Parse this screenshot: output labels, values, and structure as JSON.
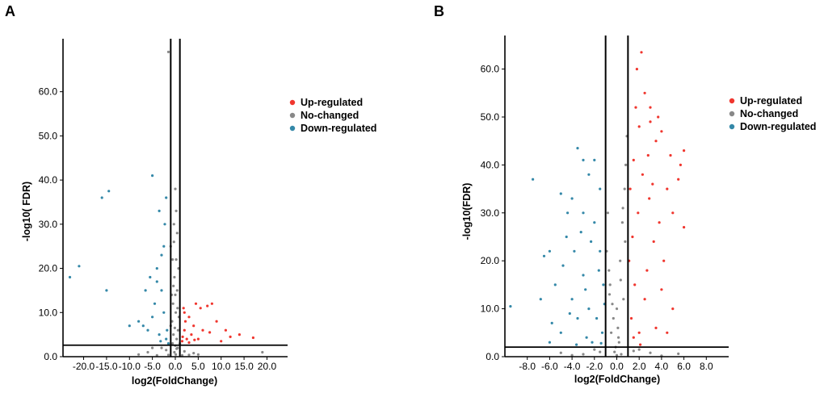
{
  "figure": {
    "panel_a_label": "A",
    "panel_b_label": "B"
  },
  "colors": {
    "up": "#f0362e",
    "none": "#888888",
    "down": "#3488a8",
    "lines": "#000000"
  },
  "chart_data": [
    {
      "type": "scatter",
      "panel": "A",
      "xlabel": "log2(FoldChange)",
      "ylabel": "-log10( FDR)",
      "xlim": [
        -24.5,
        24.5
      ],
      "ylim": [
        0,
        72
      ],
      "x_ticks": [
        -20,
        -15,
        -10,
        -5,
        0,
        5,
        10,
        15,
        20
      ],
      "x_tick_labels": [
        "-20.0",
        "-15.0",
        "-10.0",
        "-5.0",
        "0.0",
        "5.0",
        "10.0",
        "15.0",
        "20.0"
      ],
      "y_ticks": [
        0,
        10,
        20,
        30,
        40,
        50,
        60
      ],
      "y_tick_labels": [
        "0.0",
        "10.0",
        "20.0",
        "30.0",
        "40.0",
        "50.0",
        "60.0"
      ],
      "vlines": [
        -1,
        1
      ],
      "hline": 2.6,
      "legend": [
        "Up-regulated",
        "No-changed",
        "Down-regulated"
      ],
      "legend_position": "right",
      "series": [
        {
          "name": "Up-regulated",
          "points": [
            [
              4.5,
              12
            ],
            [
              7,
              11.5
            ],
            [
              8,
              12
            ],
            [
              5.5,
              11
            ],
            [
              3,
              9
            ],
            [
              2,
              10
            ],
            [
              9,
              8
            ],
            [
              11,
              6
            ],
            [
              14,
              5
            ],
            [
              17,
              4.3
            ],
            [
              6,
              6
            ],
            [
              4,
              7
            ],
            [
              3.5,
              5
            ],
            [
              2.5,
              4
            ],
            [
              1.5,
              3.5
            ],
            [
              2,
              6
            ],
            [
              3,
              3.2
            ],
            [
              1.6,
              4.5
            ],
            [
              5,
              4
            ],
            [
              7.5,
              5.5
            ],
            [
              12,
              4.5
            ],
            [
              10,
              3.5
            ],
            [
              2.2,
              8
            ],
            [
              1.8,
              11
            ],
            [
              4.2,
              3.8
            ]
          ]
        },
        {
          "name": "No-changed",
          "points": [
            [
              -1.5,
              69
            ],
            [
              0,
              38
            ],
            [
              -0.3,
              30
            ],
            [
              0.2,
              22
            ],
            [
              -0.2,
              18
            ],
            [
              0.4,
              15
            ],
            [
              -0.5,
              12
            ],
            [
              0.1,
              10
            ],
            [
              -0.7,
              8
            ],
            [
              0.6,
              6
            ],
            [
              -0.4,
              5
            ],
            [
              0.3,
              4
            ],
            [
              -0.6,
              3
            ],
            [
              0.5,
              2
            ],
            [
              -0.2,
              1
            ],
            [
              0.1,
              0.5
            ],
            [
              -8,
              0.5
            ],
            [
              -6,
              1
            ],
            [
              -4,
              0.3
            ],
            [
              5,
              0.5
            ],
            [
              3,
              0.4
            ],
            [
              19,
              1
            ],
            [
              -1,
              25
            ],
            [
              0.7,
              20
            ],
            [
              -0.3,
              26
            ],
            [
              0.2,
              33
            ],
            [
              -0.8,
              14
            ],
            [
              0.8,
              9
            ],
            [
              -1,
              7
            ],
            [
              1,
              3
            ],
            [
              -2,
              1.5
            ],
            [
              2,
              1.2
            ],
            [
              -3,
              2
            ],
            [
              4,
              0.8
            ],
            [
              -5,
              2
            ],
            [
              1.5,
              0.3
            ],
            [
              -1.5,
              0.4
            ],
            [
              0,
              14
            ],
            [
              0.4,
              28
            ],
            [
              -0.6,
              22
            ],
            [
              0,
              2.5
            ],
            [
              0.3,
              1.8
            ],
            [
              -0.1,
              6.5
            ],
            [
              0.5,
              11
            ],
            [
              -0.4,
              16
            ]
          ]
        },
        {
          "name": "Down-regulated",
          "points": [
            [
              -21,
              20.5
            ],
            [
              -23,
              18
            ],
            [
              -16,
              36
            ],
            [
              -14.5,
              37.5
            ],
            [
              -5,
              41
            ],
            [
              -15,
              15
            ],
            [
              -10,
              7
            ],
            [
              -7,
              7
            ],
            [
              -5.5,
              18
            ],
            [
              -3.5,
              33
            ],
            [
              -2,
              36
            ],
            [
              -2.5,
              25
            ],
            [
              -4,
              20
            ],
            [
              -3,
              15
            ],
            [
              -2.5,
              10
            ],
            [
              -4.5,
              12
            ],
            [
              -6,
              6
            ],
            [
              -3.5,
              5
            ],
            [
              -2,
              4
            ],
            [
              -1.5,
              3
            ],
            [
              -5,
              9
            ],
            [
              -3,
              23
            ],
            [
              -8,
              8
            ],
            [
              -2.3,
              30
            ],
            [
              -4,
              17
            ],
            [
              -1.8,
              6
            ],
            [
              -3.2,
              3.5
            ],
            [
              -6.5,
              15
            ]
          ]
        }
      ]
    },
    {
      "type": "scatter",
      "panel": "B",
      "xlabel": "log2(FoldChange)",
      "ylabel": "-log10(FDR)",
      "xlim": [
        -10,
        10
      ],
      "ylim": [
        0,
        67
      ],
      "x_ticks": [
        -8,
        -6,
        -4,
        -2,
        0,
        2,
        4,
        6,
        8
      ],
      "x_tick_labels": [
        "-8.0",
        "-6.0",
        "-4.0",
        "-2.0",
        "0.0",
        "2.0",
        "4.0",
        "6.0",
        "8.0"
      ],
      "y_ticks": [
        0,
        10,
        20,
        30,
        40,
        50,
        60
      ],
      "y_tick_labels": [
        "0.0",
        "10.0",
        "20.0",
        "30.0",
        "40.0",
        "50.0",
        "60.0"
      ],
      "vlines": [
        -1,
        1
      ],
      "hline": 2,
      "legend": [
        "Up-regulated",
        "No-changed",
        "Down-regulated"
      ],
      "legend_position": "right",
      "series": [
        {
          "name": "Up-regulated",
          "points": [
            [
              2.2,
              63.5
            ],
            [
              1.8,
              60
            ],
            [
              2.5,
              55
            ],
            [
              3,
              52
            ],
            [
              4,
              47
            ],
            [
              6,
              43
            ],
            [
              5.5,
              37
            ],
            [
              6,
              27
            ],
            [
              5.7,
              40
            ],
            [
              3.5,
              45
            ],
            [
              3,
              49
            ],
            [
              2,
              48
            ],
            [
              1.5,
              41
            ],
            [
              1.2,
              35
            ],
            [
              4.5,
              35
            ],
            [
              5,
              30
            ],
            [
              3.8,
              28
            ],
            [
              2.8,
              42
            ],
            [
              1.9,
              30
            ],
            [
              1.4,
              25
            ],
            [
              2.3,
              38
            ],
            [
              3.2,
              36
            ],
            [
              4.2,
              20
            ],
            [
              5,
              10
            ],
            [
              1.6,
              15
            ],
            [
              2.5,
              12
            ],
            [
              3.5,
              6
            ],
            [
              4.5,
              5
            ],
            [
              2,
              5
            ],
            [
              1.3,
              8
            ],
            [
              4.8,
              42
            ],
            [
              3.7,
              50
            ],
            [
              2.9,
              33
            ],
            [
              1.7,
              52
            ],
            [
              1.1,
              20
            ],
            [
              2.7,
              18
            ],
            [
              3.3,
              24
            ],
            [
              1.5,
              4
            ],
            [
              2.1,
              2.5
            ],
            [
              4,
              14
            ]
          ]
        },
        {
          "name": "No-changed",
          "points": [
            [
              -0.5,
              5
            ],
            [
              0,
              10
            ],
            [
              0.3,
              20
            ],
            [
              0.5,
              28
            ],
            [
              0.7,
              35
            ],
            [
              -0.7,
              18
            ],
            [
              -0.3,
              8
            ],
            [
              0.2,
              3
            ],
            [
              -0.8,
              30
            ],
            [
              0.8,
              40
            ],
            [
              -0.2,
              1
            ],
            [
              0.4,
              0.5
            ],
            [
              -0.6,
              15
            ],
            [
              0.6,
              12
            ],
            [
              -1.5,
              1
            ],
            [
              1.5,
              1.2
            ],
            [
              -3,
              0.5
            ],
            [
              3,
              0.8
            ],
            [
              -2,
              1.5
            ],
            [
              2,
              1.5
            ],
            [
              -4,
              0.3
            ],
            [
              4,
              0.2
            ],
            [
              0,
              0.3
            ],
            [
              0.9,
              46
            ],
            [
              -0.9,
              22
            ],
            [
              0.1,
              6
            ],
            [
              -0.4,
              11
            ],
            [
              0.35,
              16
            ],
            [
              0.75,
              24
            ],
            [
              -0.1,
              2
            ],
            [
              -5,
              0.8
            ],
            [
              5.5,
              0.6
            ],
            [
              0.55,
              31
            ],
            [
              -0.65,
              13
            ],
            [
              0.15,
              4
            ]
          ]
        },
        {
          "name": "Down-regulated",
          "points": [
            [
              -3.5,
              43.5
            ],
            [
              -3,
              41
            ],
            [
              -7.5,
              37
            ],
            [
              -2,
              41
            ],
            [
              -1.5,
              35
            ],
            [
              -2.5,
              38
            ],
            [
              -5,
              34
            ],
            [
              -4,
              33
            ],
            [
              -6,
              22
            ],
            [
              -6.5,
              21
            ],
            [
              -4.5,
              25
            ],
            [
              -3,
              30
            ],
            [
              -2,
              28
            ],
            [
              -1.5,
              22
            ],
            [
              -1.2,
              15
            ],
            [
              -2.5,
              10
            ],
            [
              -3.5,
              8
            ],
            [
              -5,
              5
            ],
            [
              -6,
              3
            ],
            [
              -9.5,
              10.5
            ],
            [
              -4,
              12
            ],
            [
              -3,
              17
            ],
            [
              -1.8,
              8
            ],
            [
              -1.3,
              5
            ],
            [
              -2.2,
              3
            ],
            [
              -5.5,
              15
            ],
            [
              -4.8,
              19
            ],
            [
              -3.8,
              22
            ],
            [
              -2.8,
              14
            ],
            [
              -1.6,
              18
            ],
            [
              -2.3,
              24
            ],
            [
              -3.2,
              26
            ],
            [
              -4.2,
              9
            ],
            [
              -5.8,
              7
            ],
            [
              -1.1,
              11
            ],
            [
              -2.7,
              4
            ],
            [
              -3.6,
              2.5
            ],
            [
              -1.4,
              2.8
            ],
            [
              -6.8,
              12
            ],
            [
              -4.4,
              30
            ]
          ]
        }
      ]
    }
  ]
}
